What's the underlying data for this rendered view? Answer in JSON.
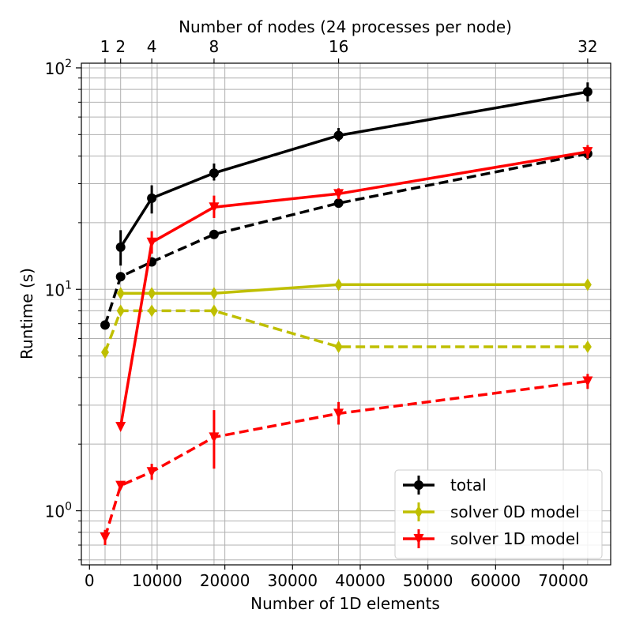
{
  "chart_data": {
    "type": "line",
    "xlabel": "Number of 1D elements",
    "ylabel": "Runtime (s)",
    "top_xlabel": "Number of nodes (24 processes per node)",
    "xlim": [
      -1200,
      77000
    ],
    "ylim": [
      0.57,
      105
    ],
    "yscale": "log",
    "grid": true,
    "legend_position": "lower-right",
    "x_ticks": [
      {
        "value": 0,
        "label": "0"
      },
      {
        "value": 10000,
        "label": "10000"
      },
      {
        "value": 20000,
        "label": "20000"
      },
      {
        "value": 30000,
        "label": "30000"
      },
      {
        "value": 40000,
        "label": "40000"
      },
      {
        "value": 50000,
        "label": "50000"
      },
      {
        "value": 60000,
        "label": "60000"
      },
      {
        "value": 70000,
        "label": "70000"
      }
    ],
    "top_x_ticks": [
      {
        "value": 2300,
        "label": "1"
      },
      {
        "value": 4600,
        "label": "2"
      },
      {
        "value": 9200,
        "label": "4"
      },
      {
        "value": 18400,
        "label": "8"
      },
      {
        "value": 36800,
        "label": "16"
      },
      {
        "value": 73600,
        "label": "32"
      }
    ],
    "y_ticks": [
      {
        "value": 1,
        "base": "10",
        "exp": "0"
      },
      {
        "value": 10,
        "base": "10",
        "exp": "1"
      },
      {
        "value": 100,
        "base": "10",
        "exp": "2"
      }
    ],
    "series": [
      {
        "name": "total",
        "color": "#000000",
        "marker": "circle",
        "in_legend": true,
        "solid": {
          "x": [
            4600,
            9200,
            18400,
            36800,
            73600
          ],
          "y": [
            15.5,
            25.8,
            33.5,
            49.5,
            78
          ],
          "err": [
            [
              12.8,
              18.5
            ],
            [
              22.0,
              29.5
            ],
            [
              31.0,
              37.0
            ],
            [
              46.5,
              53.5
            ],
            [
              70.5,
              86.0
            ]
          ]
        },
        "dashed": {
          "x": [
            2300,
            4600,
            9200,
            18400,
            36800,
            73600
          ],
          "y": [
            6.9,
            11.4,
            13.3,
            17.7,
            24.5,
            41.0
          ],
          "err": [
            [
              6.7,
              7.1
            ],
            [
              11.1,
              11.7
            ],
            [
              12.9,
              13.7
            ],
            [
              17.3,
              18.1
            ],
            [
              23.9,
              25.1
            ],
            [
              38.5,
              43.5
            ]
          ]
        }
      },
      {
        "name": "solver 0D model",
        "color": "#bfbf00",
        "marker": "diamond",
        "in_legend": true,
        "solid": {
          "x": [
            4600,
            9200,
            18400,
            36800,
            73600
          ],
          "y": [
            9.6,
            9.6,
            9.6,
            10.5,
            10.5
          ],
          "err": [
            [
              9.4,
              9.8
            ],
            [
              9.4,
              9.8
            ],
            [
              9.4,
              9.8
            ],
            [
              10.3,
              10.7
            ],
            [
              10.3,
              10.7
            ]
          ]
        },
        "dashed": {
          "x": [
            2300,
            4600,
            9200,
            18400,
            36800,
            73600
          ],
          "y": [
            5.2,
            8.0,
            8.0,
            8.0,
            5.5,
            5.5
          ],
          "err": [
            [
              5.1,
              5.3
            ],
            [
              7.85,
              8.15
            ],
            [
              7.85,
              8.15
            ],
            [
              7.85,
              8.15
            ],
            [
              5.4,
              5.6
            ],
            [
              5.4,
              5.6
            ]
          ]
        }
      },
      {
        "name": "solver 1D model",
        "color": "#ff0000",
        "marker": "triangle-down",
        "in_legend": true,
        "solid": {
          "x": [
            4600,
            9200,
            18400,
            36800,
            73600
          ],
          "y": [
            2.4,
            16.3,
            23.5,
            27.0,
            41.8
          ],
          "err": [
            [
              2.35,
              2.45
            ],
            [
              14.5,
              18.3
            ],
            [
              21.0,
              26.5
            ],
            [
              25.5,
              28.6
            ],
            [
              39.0,
              44.8
            ]
          ]
        },
        "dashed": {
          "x": [
            2300,
            4600,
            9200,
            18400,
            36800,
            73600
          ],
          "y": [
            0.76,
            1.3,
            1.5,
            2.15,
            2.75,
            3.85
          ],
          "err": [
            [
              0.7,
              0.82
            ],
            [
              1.27,
              1.33
            ],
            [
              1.38,
              1.63
            ],
            [
              1.55,
              2.85
            ],
            [
              2.45,
              3.1
            ],
            [
              3.55,
              4.15
            ]
          ]
        }
      }
    ]
  }
}
